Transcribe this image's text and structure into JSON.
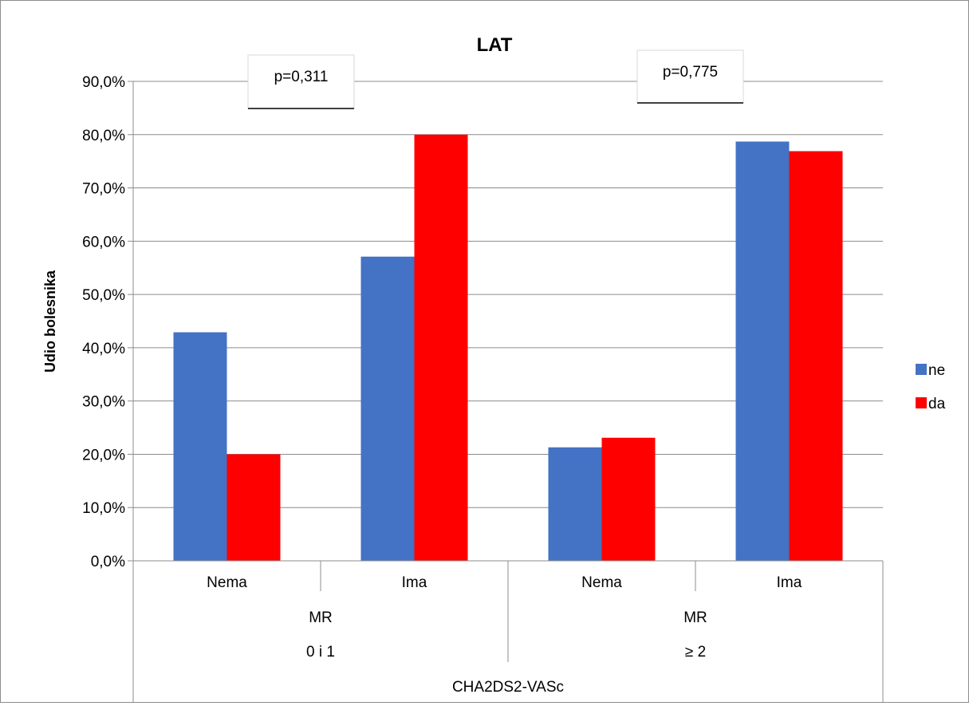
{
  "chart_data": {
    "type": "bar",
    "title": "LAT",
    "ylabel": "Udio bolesnika",
    "xlabel": "CHA2DS2-VASc",
    "ylim": [
      0,
      90
    ],
    "y_ticks": [
      "0,0%",
      "10,0%",
      "20,0%",
      "30,0%",
      "40,0%",
      "50,0%",
      "60,0%",
      "70,0%",
      "80,0%",
      "90,0%"
    ],
    "grid": true,
    "legend_position": "right",
    "categories": [
      "Nema",
      "Ima",
      "Nema",
      "Ima"
    ],
    "groups": [
      {
        "mr_label": "MR",
        "score_label": "0 i 1",
        "annotation": "p=0,311"
      },
      {
        "mr_label": "MR",
        "score_label": "≥ 2",
        "annotation": "p=0,775"
      }
    ],
    "series": [
      {
        "name": "ne",
        "color": "#4472C4",
        "values": [
          42.9,
          57.1,
          21.3,
          78.7
        ]
      },
      {
        "name": "da",
        "color": "#FF0000",
        "values": [
          20.0,
          80.0,
          23.1,
          76.9
        ]
      }
    ]
  }
}
